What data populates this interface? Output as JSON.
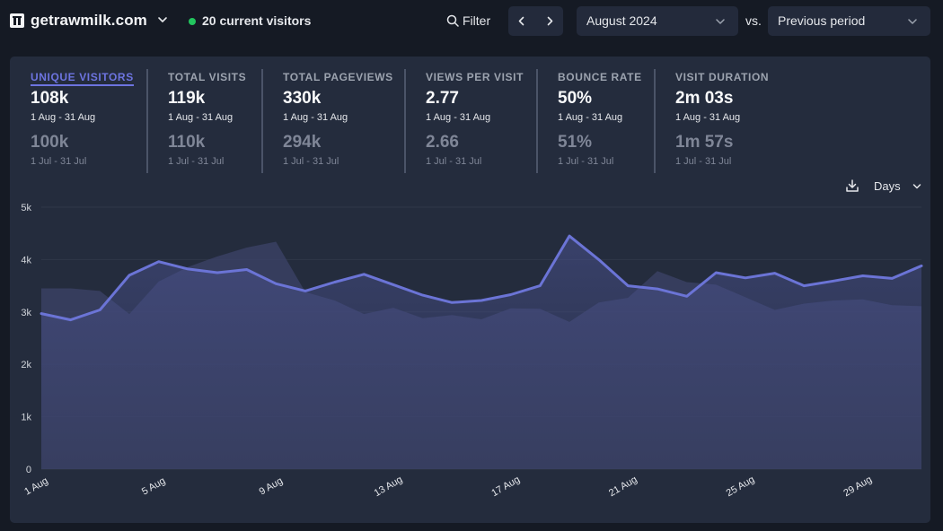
{
  "header": {
    "site_name": "getrawmilk.com",
    "site_icon": "site-logo-icon",
    "current_visitors": "20 current visitors",
    "live_color": "#22c55e",
    "filter_label": "Filter",
    "date_range": "August 2024",
    "vs_label": "vs.",
    "comparison": "Previous period"
  },
  "metrics": [
    {
      "label": "UNIQUE VISITORS",
      "value": "108k",
      "range": "1 Aug - 31 Aug",
      "prev_value": "100k",
      "prev_range": "1 Jul - 31 Jul",
      "active": true
    },
    {
      "label": "TOTAL VISITS",
      "value": "119k",
      "range": "1 Aug - 31 Aug",
      "prev_value": "110k",
      "prev_range": "1 Jul - 31 Jul"
    },
    {
      "label": "TOTAL PAGEVIEWS",
      "value": "330k",
      "range": "1 Aug - 31 Aug",
      "prev_value": "294k",
      "prev_range": "1 Jul - 31 Jul"
    },
    {
      "label": "VIEWS PER VISIT",
      "value": "2.77",
      "range": "1 Aug - 31 Aug",
      "prev_value": "2.66",
      "prev_range": "1 Jul - 31 Jul"
    },
    {
      "label": "BOUNCE RATE",
      "value": "50%",
      "range": "1 Aug - 31 Aug",
      "prev_value": "51%",
      "prev_range": "1 Jul - 31 Jul"
    },
    {
      "label": "VISIT DURATION",
      "value": "2m 03s",
      "range": "1 Aug - 31 Aug",
      "prev_value": "1m 57s",
      "prev_range": "1 Jul - 31 Jul"
    }
  ],
  "chart_controls": {
    "interval_label": "Days",
    "download_icon": "download-icon"
  },
  "chart_data": {
    "type": "line",
    "x": [
      "1 Aug",
      "2 Aug",
      "3 Aug",
      "4 Aug",
      "5 Aug",
      "6 Aug",
      "7 Aug",
      "8 Aug",
      "9 Aug",
      "10 Aug",
      "11 Aug",
      "12 Aug",
      "13 Aug",
      "14 Aug",
      "15 Aug",
      "16 Aug",
      "17 Aug",
      "18 Aug",
      "19 Aug",
      "20 Aug",
      "21 Aug",
      "22 Aug",
      "23 Aug",
      "24 Aug",
      "25 Aug",
      "26 Aug",
      "27 Aug",
      "28 Aug",
      "29 Aug",
      "30 Aug",
      "31 Aug"
    ],
    "x_tick_labels": [
      "1 Aug",
      "5 Aug",
      "9 Aug",
      "13 Aug",
      "17 Aug",
      "21 Aug",
      "25 Aug",
      "29 Aug"
    ],
    "y_ticks": [
      "0",
      "1k",
      "2k",
      "3k",
      "4k",
      "5k"
    ],
    "ylim": [
      0,
      5000
    ],
    "series": [
      {
        "role": "current",
        "color": "#6b74d6",
        "values": [
          2970,
          2850,
          3040,
          3700,
          3960,
          3820,
          3750,
          3810,
          3540,
          3400,
          3570,
          3720,
          3520,
          3320,
          3180,
          3220,
          3330,
          3500,
          4450,
          4000,
          3500,
          3440,
          3300,
          3750,
          3650,
          3740,
          3500,
          3590,
          3690,
          3640,
          3880
        ]
      },
      {
        "role": "previous",
        "color": "#3c4368",
        "values": [
          3450,
          3450,
          3400,
          2960,
          3580,
          3860,
          4060,
          4230,
          4340,
          3380,
          3220,
          2960,
          3080,
          2880,
          2940,
          2860,
          3070,
          3060,
          2810,
          3180,
          3270,
          3780,
          3570,
          3520,
          3280,
          3040,
          3160,
          3220,
          3240,
          3130,
          3110
        ]
      }
    ],
    "grid": true
  }
}
